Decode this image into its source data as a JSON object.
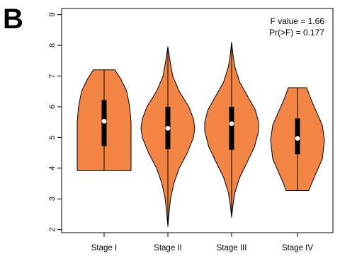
{
  "panel_label": "B",
  "colors": {
    "violin_fill": "#F28544",
    "stroke": "#000000",
    "median_dot": "#ffffff"
  },
  "annotations": {
    "f_value": "F value = 1.66",
    "p_value": "Pr(>F) = 0.177"
  },
  "chart_data": {
    "type": "violin",
    "title": "",
    "xlabel": "",
    "ylabel": "",
    "ylim": [
      1.9,
      9.2
    ],
    "yticks": [
      "2",
      "3",
      "4",
      "5",
      "6",
      "7",
      "8",
      "9"
    ],
    "categories": [
      "Stage I",
      "Stage II",
      "Stage III",
      "Stage IV"
    ],
    "series": [
      {
        "min": 3.92,
        "q1": 4.72,
        "median": 5.53,
        "q3": 6.22,
        "max": 7.2,
        "density": [
          [
            3.92,
            1.0
          ],
          [
            4.2,
            1.0
          ],
          [
            4.5,
            1.0
          ],
          [
            5.0,
            1.0
          ],
          [
            5.5,
            1.0
          ],
          [
            6.0,
            0.95
          ],
          [
            6.5,
            0.84
          ],
          [
            6.9,
            0.62
          ],
          [
            7.2,
            0.4
          ]
        ]
      },
      {
        "min": 2.1,
        "q1": 4.62,
        "median": 5.3,
        "q3": 6.0,
        "max": 7.95,
        "density": [
          [
            2.1,
            0.0
          ],
          [
            2.6,
            0.05
          ],
          [
            3.0,
            0.1
          ],
          [
            3.5,
            0.22
          ],
          [
            4.0,
            0.42
          ],
          [
            4.5,
            0.72
          ],
          [
            5.0,
            0.95
          ],
          [
            5.3,
            1.0
          ],
          [
            5.6,
            0.95
          ],
          [
            6.0,
            0.78
          ],
          [
            6.5,
            0.42
          ],
          [
            7.0,
            0.18
          ],
          [
            7.5,
            0.08
          ],
          [
            7.95,
            0.0
          ]
        ]
      },
      {
        "min": 2.4,
        "q1": 4.6,
        "median": 5.45,
        "q3": 6.0,
        "max": 8.1,
        "density": [
          [
            2.4,
            0.0
          ],
          [
            2.8,
            0.05
          ],
          [
            3.2,
            0.12
          ],
          [
            3.7,
            0.3
          ],
          [
            4.2,
            0.58
          ],
          [
            4.7,
            0.85
          ],
          [
            5.2,
            1.0
          ],
          [
            5.5,
            1.0
          ],
          [
            5.9,
            0.88
          ],
          [
            6.3,
            0.62
          ],
          [
            6.8,
            0.3
          ],
          [
            7.3,
            0.12
          ],
          [
            7.7,
            0.05
          ],
          [
            8.1,
            0.0
          ]
        ]
      },
      {
        "min": 3.27,
        "q1": 4.45,
        "median": 4.97,
        "q3": 5.62,
        "max": 6.62,
        "density": [
          [
            3.27,
            0.42
          ],
          [
            3.5,
            0.52
          ],
          [
            3.9,
            0.72
          ],
          [
            4.3,
            0.92
          ],
          [
            4.9,
            1.0
          ],
          [
            5.4,
            0.92
          ],
          [
            5.8,
            0.72
          ],
          [
            6.2,
            0.52
          ],
          [
            6.62,
            0.34
          ]
        ]
      }
    ]
  }
}
